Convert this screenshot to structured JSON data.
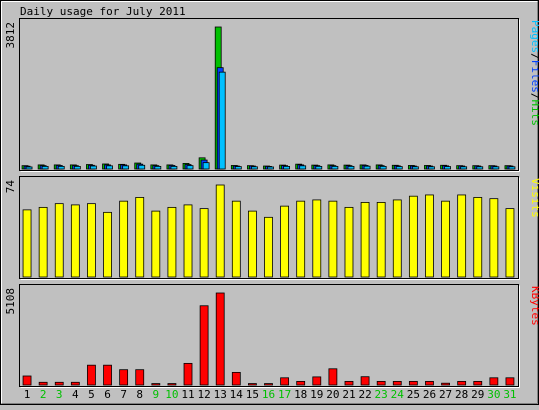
{
  "chart_data": {
    "type": "bar",
    "title": "Daily usage for July 2011",
    "categories": [
      "1",
      "2",
      "3",
      "4",
      "5",
      "6",
      "7",
      "8",
      "9",
      "10",
      "11",
      "12",
      "13",
      "14",
      "15",
      "16",
      "17",
      "18",
      "19",
      "20",
      "21",
      "22",
      "23",
      "24",
      "25",
      "26",
      "27",
      "28",
      "29",
      "30",
      "31"
    ],
    "weekend_days": [
      "2",
      "3",
      "9",
      "10",
      "16",
      "17",
      "23",
      "24",
      "30",
      "31"
    ],
    "colors": {
      "hits": "#00c000",
      "files": "#0040ff",
      "pages": "#00c0ff",
      "visits": "#ffff00",
      "kbytes": "#ff0000",
      "weekday_label": "#000000",
      "weekend_label": "#00c000",
      "background": "#c0c0c0"
    },
    "panels": [
      {
        "name": "hits-files-pages",
        "max_label": "3812",
        "ylim": [
          0,
          3812
        ],
        "legend": [
          {
            "text": "Pages",
            "color": "#00c0ff"
          },
          {
            "text": "/",
            "color": "#000000"
          },
          {
            "text": "Files",
            "color": "#0040ff"
          },
          {
            "text": "/",
            "color": "#000000"
          },
          {
            "text": "Hits",
            "color": "#00c000"
          }
        ],
        "series": [
          {
            "name": "Hits",
            "values": [
              90,
              110,
              110,
              110,
              120,
              135,
              125,
              160,
              110,
              110,
              150,
              300,
              3812,
              95,
              90,
              80,
              105,
              130,
              105,
              110,
              105,
              110,
              110,
              100,
              95,
              95,
              100,
              90,
              90,
              90,
              90
            ]
          },
          {
            "name": "Files",
            "values": [
              75,
              90,
              95,
              90,
              100,
              110,
              110,
              130,
              90,
              95,
              120,
              240,
              2720,
              80,
              80,
              70,
              90,
              110,
              90,
              90,
              90,
              95,
              90,
              85,
              80,
              80,
              85,
              80,
              80,
              80,
              80
            ]
          },
          {
            "name": "Pages",
            "values": [
              55,
              70,
              70,
              70,
              80,
              85,
              85,
              100,
              70,
              70,
              90,
              170,
              2600,
              65,
              60,
              55,
              70,
              85,
              70,
              70,
              70,
              75,
              70,
              65,
              60,
              60,
              65,
              60,
              60,
              60,
              60
            ]
          }
        ]
      },
      {
        "name": "visits",
        "max_label": "74",
        "ylim": [
          0,
          74
        ],
        "legend": [
          {
            "text": "Visits",
            "color": "#ffff00"
          }
        ],
        "series": [
          {
            "name": "Visits",
            "values": [
              54,
              56,
              59,
              58,
              59,
              52,
              61,
              64,
              53,
              56,
              58,
              55,
              74,
              61,
              53,
              48,
              57,
              61,
              62,
              61,
              56,
              60,
              60,
              62,
              65,
              66,
              61,
              66,
              64,
              63,
              55
            ]
          }
        ]
      },
      {
        "name": "kbytes",
        "max_label": "5108",
        "ylim": [
          0,
          5108
        ],
        "legend": [
          {
            "text": "KBytes",
            "color": "#ff0000"
          }
        ],
        "series": [
          {
            "name": "KBytes",
            "values": [
              500,
              150,
              150,
              150,
              1100,
              1100,
              850,
              850,
              80,
              80,
              1200,
              4400,
              5108,
              700,
              80,
              80,
              400,
              200,
              450,
              900,
              200,
              460,
              200,
              200,
              200,
              200,
              100,
              200,
              200,
              400,
              400
            ]
          }
        ]
      }
    ]
  }
}
